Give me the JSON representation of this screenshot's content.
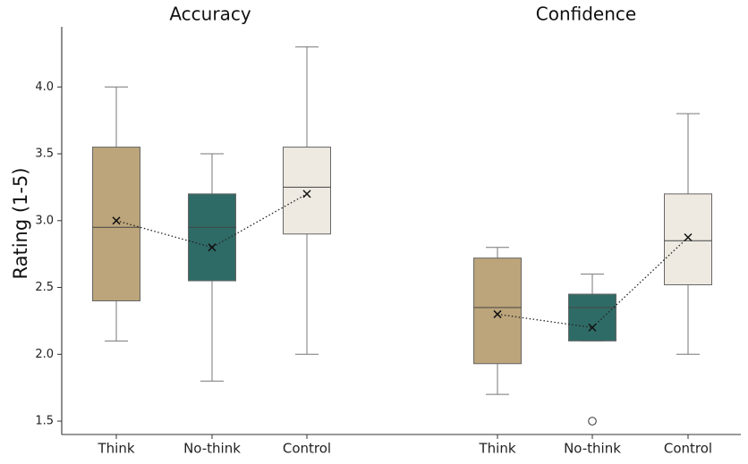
{
  "chart_data": {
    "type": "box",
    "ylabel": "Rating (1-5)",
    "ylim": [
      1.4,
      4.45
    ],
    "yticks": [
      "1.5",
      "2.0",
      "2.5",
      "3.0",
      "3.5",
      "4.0"
    ],
    "grid": false,
    "categories": [
      "Think",
      "No-think",
      "Control"
    ],
    "colors": {
      "Think": "#bca57b",
      "No-think": "#2f6b66",
      "Control": "#eeeae1"
    },
    "groups": [
      {
        "title": "Accuracy",
        "boxes": [
          {
            "category": "Think",
            "min": 2.1,
            "q1": 2.4,
            "median": 2.95,
            "q3": 3.55,
            "max": 4.0,
            "mean": 3.0,
            "outliers": []
          },
          {
            "category": "No-think",
            "min": 1.8,
            "q1": 2.55,
            "median": 2.95,
            "q3": 3.2,
            "max": 3.5,
            "mean": 2.8,
            "outliers": []
          },
          {
            "category": "Control",
            "min": 2.0,
            "q1": 2.9,
            "median": 3.25,
            "q3": 3.55,
            "max": 4.3,
            "mean": 3.2,
            "outliers": []
          }
        ]
      },
      {
        "title": "Confidence",
        "boxes": [
          {
            "category": "Think",
            "min": 1.7,
            "q1": 1.93,
            "median": 2.35,
            "q3": 2.72,
            "max": 2.8,
            "mean": 2.3,
            "outliers": []
          },
          {
            "category": "No-think",
            "min": 2.1,
            "q1": 2.1,
            "median": 2.35,
            "q3": 2.45,
            "max": 2.6,
            "mean": 2.2,
            "outliers": [
              1.5
            ]
          },
          {
            "category": "Control",
            "min": 2.0,
            "q1": 2.52,
            "median": 2.85,
            "q3": 3.2,
            "max": 3.8,
            "mean": 2.875,
            "outliers": []
          }
        ]
      }
    ]
  }
}
